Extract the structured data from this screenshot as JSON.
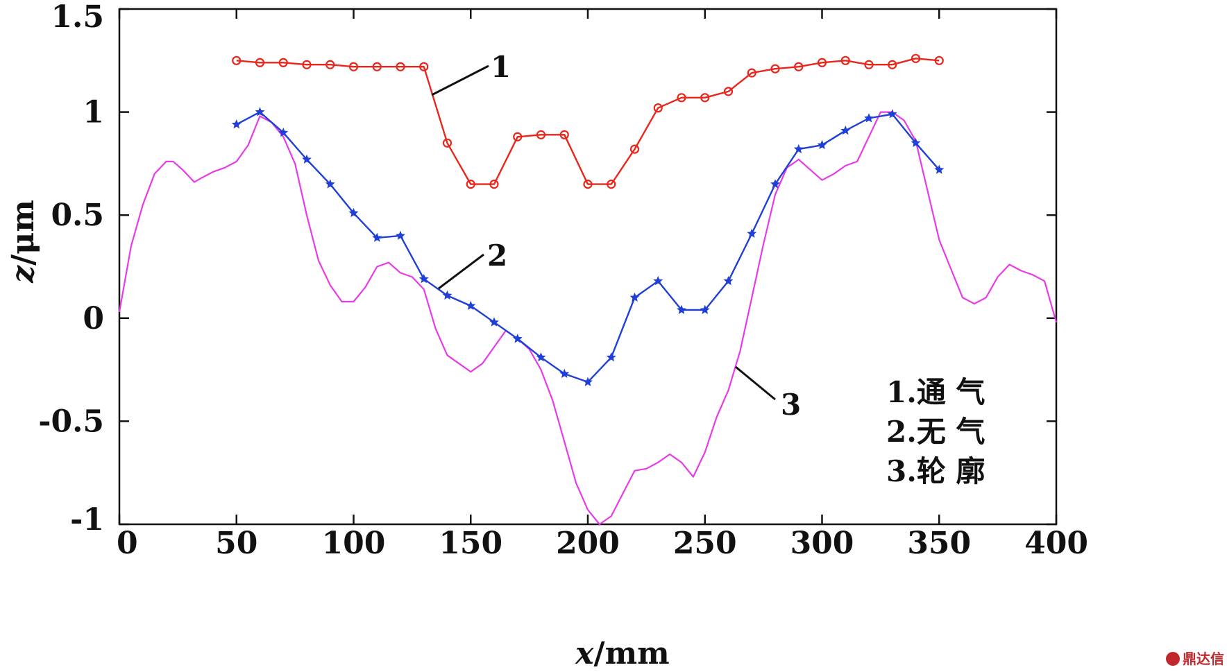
{
  "chart_data": {
    "type": "line",
    "xlabel": {
      "var": "x",
      "unit": "/mm"
    },
    "ylabel": {
      "var": "z",
      "unit": "/μm"
    },
    "xlim": [
      0,
      400
    ],
    "ylim": [
      -1,
      1.5
    ],
    "xticks": [
      0,
      50,
      100,
      150,
      200,
      250,
      300,
      350,
      400
    ],
    "yticks": [
      -1,
      -0.5,
      0,
      0.5,
      1,
      1.5
    ],
    "xtick_labels": [
      "0",
      "50",
      "100",
      "150",
      "200",
      "250",
      "300",
      "350",
      "400"
    ],
    "ytick_labels": [
      "-1",
      "-0.5",
      "0",
      "0.5",
      "1",
      "1.5"
    ],
    "grid": false,
    "series": [
      {
        "name": "1",
        "color": "#e8261b",
        "marker": "circle",
        "x": [
          50,
          60,
          70,
          80,
          90,
          100,
          110,
          120,
          130,
          140,
          150,
          160,
          170,
          180,
          190,
          200,
          210,
          220,
          230,
          240,
          250,
          260,
          270,
          280,
          290,
          300,
          310,
          320,
          330,
          340,
          350
        ],
        "y": [
          1.25,
          1.24,
          1.24,
          1.23,
          1.23,
          1.22,
          1.22,
          1.22,
          1.22,
          0.85,
          0.65,
          0.65,
          0.88,
          0.89,
          0.89,
          0.65,
          0.65,
          0.82,
          1.02,
          1.07,
          1.07,
          1.1,
          1.19,
          1.21,
          1.22,
          1.24,
          1.25,
          1.23,
          1.23,
          1.26,
          1.25
        ]
      },
      {
        "name": "2",
        "color": "#1f3fd6",
        "marker": "star",
        "x": [
          50,
          60,
          70,
          80,
          90,
          100,
          110,
          120,
          130,
          140,
          150,
          160,
          170,
          180,
          190,
          200,
          210,
          220,
          230,
          240,
          250,
          260,
          270,
          280,
          290,
          300,
          310,
          320,
          330,
          340,
          350
        ],
        "y": [
          0.94,
          1.0,
          0.9,
          0.77,
          0.65,
          0.51,
          0.39,
          0.4,
          0.19,
          0.11,
          0.06,
          -0.02,
          -0.1,
          -0.19,
          -0.27,
          -0.31,
          -0.19,
          0.1,
          0.18,
          0.04,
          0.04,
          0.18,
          0.41,
          0.65,
          0.82,
          0.84,
          0.91,
          0.97,
          0.99,
          0.85,
          0.72
        ]
      },
      {
        "name": "3",
        "color": "#e83be8",
        "marker": "none",
        "x": [
          0,
          5,
          10,
          15,
          20,
          23,
          27,
          32,
          35,
          40,
          45,
          50,
          55,
          60,
          65,
          70,
          75,
          80,
          85,
          90,
          95,
          100,
          105,
          110,
          115,
          120,
          125,
          130,
          135,
          140,
          145,
          150,
          155,
          160,
          165,
          170,
          175,
          180,
          185,
          190,
          195,
          200,
          205,
          210,
          215,
          220,
          225,
          230,
          235,
          240,
          245,
          250,
          255,
          260,
          265,
          270,
          275,
          280,
          285,
          290,
          295,
          300,
          305,
          310,
          315,
          320,
          325,
          330,
          335,
          340,
          345,
          350,
          355,
          360,
          365,
          370,
          375,
          380,
          385,
          390,
          395,
          400
        ],
        "y": [
          0.03,
          0.35,
          0.55,
          0.7,
          0.76,
          0.76,
          0.72,
          0.66,
          0.68,
          0.71,
          0.73,
          0.76,
          0.84,
          0.98,
          0.95,
          0.88,
          0.75,
          0.5,
          0.28,
          0.16,
          0.08,
          0.08,
          0.15,
          0.25,
          0.27,
          0.22,
          0.2,
          0.14,
          -0.05,
          -0.18,
          -0.22,
          -0.26,
          -0.22,
          -0.14,
          -0.06,
          -0.1,
          -0.15,
          -0.25,
          -0.4,
          -0.6,
          -0.8,
          -0.93,
          -1.0,
          -0.96,
          -0.85,
          -0.74,
          -0.73,
          -0.7,
          -0.66,
          -0.7,
          -0.77,
          -0.65,
          -0.48,
          -0.35,
          -0.16,
          0.1,
          0.36,
          0.6,
          0.73,
          0.77,
          0.72,
          0.67,
          0.7,
          0.74,
          0.76,
          0.88,
          1.0,
          1.0,
          0.96,
          0.86,
          0.62,
          0.38,
          0.24,
          0.1,
          0.07,
          0.1,
          0.2,
          0.26,
          0.23,
          0.21,
          0.18,
          -0.02
        ]
      }
    ],
    "callouts": [
      "1",
      "2",
      "3"
    ],
    "legend": {
      "position": "bottom-right",
      "entries": [
        "1.通 气",
        "2.无 气",
        "3.轮 廓"
      ]
    }
  },
  "watermark": "鼎达信"
}
